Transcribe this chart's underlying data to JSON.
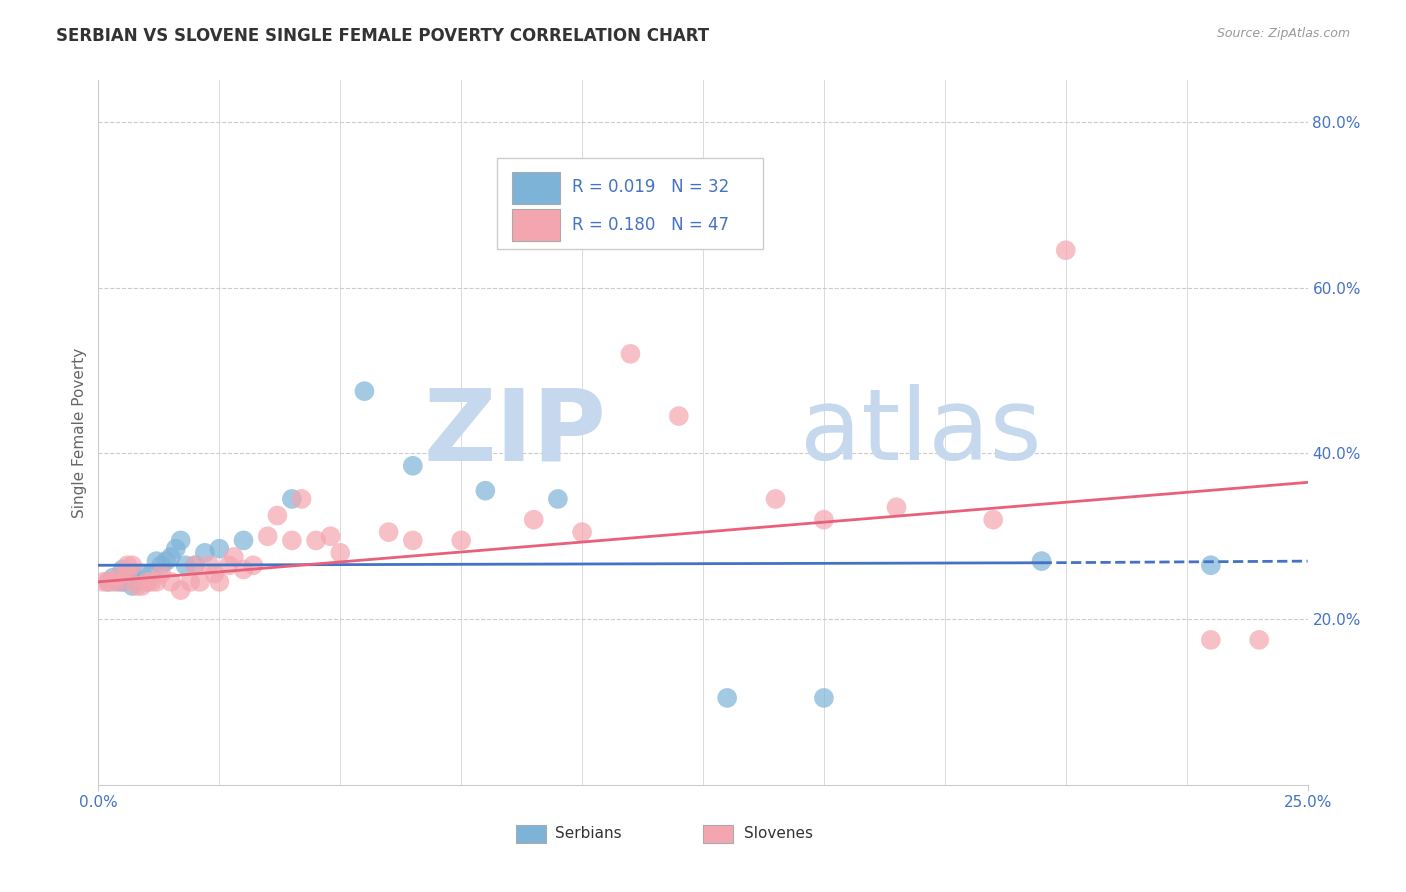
{
  "title": "SERBIAN VS SLOVENE SINGLE FEMALE POVERTY CORRELATION CHART",
  "source_text": "Source: ZipAtlas.com",
  "ylabel": "Single Female Poverty",
  "xlim": [
    0.0,
    0.25
  ],
  "ylim": [
    0.0,
    0.85
  ],
  "xticks": [
    0.0,
    0.25
  ],
  "xticklabels": [
    "0.0%",
    "25.0%"
  ],
  "yticks_right": [
    0.2,
    0.4,
    0.6,
    0.8
  ],
  "ytick_right_labels": [
    "20.0%",
    "40.0%",
    "60.0%",
    "80.0%"
  ],
  "legend_r_serbian": "R = 0.019",
  "legend_n_serbian": "N = 32",
  "legend_r_slovene": "R = 0.180",
  "legend_n_slovene": "N = 47",
  "serbian_color": "#7EB3D8",
  "slovene_color": "#F4A6B0",
  "serbian_line_color": "#4472C4",
  "slovene_line_color": "#E8607A",
  "text_color": "#4472C4",
  "watermark_zip": "ZIP",
  "watermark_atlas": "atlas",
  "watermark_color": "#C5D8EE",
  "serbian_x": [
    0.002,
    0.003,
    0.004,
    0.005,
    0.005,
    0.006,
    0.007,
    0.007,
    0.008,
    0.009,
    0.01,
    0.011,
    0.012,
    0.013,
    0.014,
    0.015,
    0.016,
    0.017,
    0.018,
    0.02,
    0.022,
    0.025,
    0.03,
    0.04,
    0.055,
    0.065,
    0.08,
    0.095,
    0.13,
    0.15,
    0.195,
    0.23
  ],
  "serbian_y": [
    0.245,
    0.25,
    0.245,
    0.26,
    0.245,
    0.255,
    0.255,
    0.24,
    0.245,
    0.255,
    0.245,
    0.255,
    0.27,
    0.265,
    0.27,
    0.275,
    0.285,
    0.295,
    0.265,
    0.265,
    0.28,
    0.285,
    0.295,
    0.345,
    0.475,
    0.385,
    0.355,
    0.345,
    0.105,
    0.105,
    0.27,
    0.265
  ],
  "slovene_x": [
    0.001,
    0.002,
    0.003,
    0.004,
    0.005,
    0.006,
    0.006,
    0.007,
    0.008,
    0.009,
    0.01,
    0.011,
    0.012,
    0.013,
    0.015,
    0.017,
    0.019,
    0.02,
    0.021,
    0.023,
    0.024,
    0.025,
    0.027,
    0.028,
    0.03,
    0.032,
    0.035,
    0.037,
    0.04,
    0.042,
    0.045,
    0.048,
    0.05,
    0.06,
    0.065,
    0.075,
    0.09,
    0.1,
    0.11,
    0.12,
    0.14,
    0.15,
    0.165,
    0.185,
    0.2,
    0.23,
    0.24
  ],
  "slovene_y": [
    0.245,
    0.245,
    0.245,
    0.25,
    0.245,
    0.255,
    0.265,
    0.265,
    0.24,
    0.24,
    0.245,
    0.245,
    0.245,
    0.255,
    0.245,
    0.235,
    0.245,
    0.265,
    0.245,
    0.265,
    0.255,
    0.245,
    0.265,
    0.275,
    0.26,
    0.265,
    0.3,
    0.325,
    0.295,
    0.345,
    0.295,
    0.3,
    0.28,
    0.305,
    0.295,
    0.295,
    0.32,
    0.305,
    0.52,
    0.445,
    0.345,
    0.32,
    0.335,
    0.32,
    0.645,
    0.175,
    0.175
  ]
}
